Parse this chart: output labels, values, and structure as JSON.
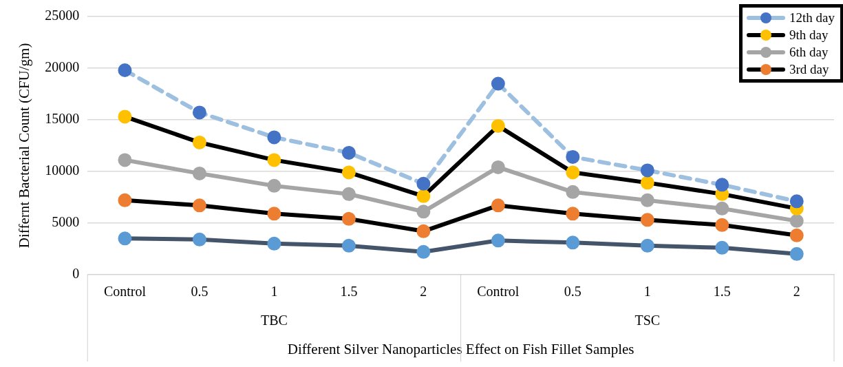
{
  "chart_data": {
    "type": "line",
    "xlabel": "Different Silver Nanoparticles Effect on Fish Fillet Samples",
    "ylabel": "Differnt Bacterial Count (CFU/gm)",
    "categories": [
      "Control",
      "0.5",
      "1",
      "1.5",
      "2",
      "Control",
      "0.5",
      "1",
      "1.5",
      "2"
    ],
    "annotations": [
      "TBC",
      "TSC"
    ],
    "ylim": [
      0,
      25000
    ],
    "yticks": [
      0,
      5000,
      10000,
      15000,
      20000,
      25000
    ],
    "grid": "y",
    "legend": "top right",
    "marker": "circle",
    "series": [
      {
        "name": "12th day",
        "color": "#9dbfe0",
        "line_style": "dashed",
        "colors": [
          "#4472c4",
          "#4472c4",
          "#4472c4",
          "#4472c4",
          "#4472c4",
          "#4472c4",
          "#4472c4",
          "#4472c4",
          "#4472c4",
          "#4472c4"
        ],
        "values": [
          19800,
          15700,
          13300,
          11800,
          8800,
          18500,
          11400,
          10100,
          8700,
          7100
        ]
      },
      {
        "name": "9th day",
        "color": "#000000",
        "colors": [
          "#ffc000",
          "#ffc000",
          "#ffc000",
          "#ffc000",
          "#ffc000",
          "#ffc000",
          "#ffc000",
          "#ffc000",
          "#ffc000",
          "#ffc000"
        ],
        "values": [
          15300,
          12800,
          11100,
          9900,
          7600,
          14400,
          9900,
          8900,
          7800,
          6400
        ]
      },
      {
        "name": "6th day",
        "color": "#a5a5a5",
        "values": [
          11100,
          9800,
          8600,
          7800,
          6100,
          10400,
          8000,
          7200,
          6400,
          5200
        ]
      },
      {
        "name": "3rd day",
        "color": "#000000",
        "colors": [
          "#ed7d31",
          "#ed7d31",
          "#ed7d31",
          "#ed7d31",
          "#ed7d31",
          "#ed7d31",
          "#ed7d31",
          "#ed7d31",
          "#ed7d31",
          "#ed7d31"
        ],
        "values": [
          7200,
          6700,
          5900,
          5400,
          4200,
          6700,
          5900,
          5300,
          4800,
          3800
        ]
      },
      {
        "color": "#44546a",
        "colors": [
          "#5b9bd5",
          "#5b9bd5",
          "#5b9bd5",
          "#5b9bd5",
          "#5b9bd5",
          "#5b9bd5",
          "#5b9bd5",
          "#5b9bd5",
          "#5b9bd5",
          "#5b9bd5"
        ],
        "values": [
          3500,
          3400,
          3000,
          2800,
          2200,
          3300,
          3100,
          2800,
          2600,
          2000
        ]
      }
    ]
  }
}
